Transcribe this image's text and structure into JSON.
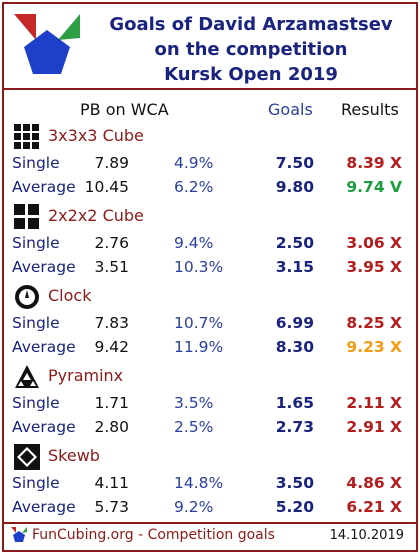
{
  "header": {
    "title_line1": "Goals of David Arzamastsev",
    "title_line2": "on the competition",
    "title_line3": "Kursk Open 2019"
  },
  "columns": {
    "pb": "PB on WCA",
    "goals": "Goals",
    "results": "Results"
  },
  "colors": {
    "frame": "#8b1a1a",
    "navy": "#1a237e",
    "result_miss": "#b71c1c",
    "result_hit": "#1b9e3e",
    "result_near": "#f39c12"
  },
  "events": [
    {
      "name": "3x3x3 Cube",
      "icon": "cube-3x3-icon",
      "rows": [
        {
          "label": "Single",
          "pb": "7.89",
          "pct": "4.9%",
          "goal": "7.50",
          "result": "8.39 X",
          "status": "miss"
        },
        {
          "label": "Average",
          "pb": "10.45",
          "pct": "6.2%",
          "goal": "9.80",
          "result": "9.74 V",
          "status": "hit"
        }
      ]
    },
    {
      "name": "2x2x2 Cube",
      "icon": "cube-2x2-icon",
      "rows": [
        {
          "label": "Single",
          "pb": "2.76",
          "pct": "9.4%",
          "goal": "2.50",
          "result": "3.06 X",
          "status": "miss"
        },
        {
          "label": "Average",
          "pb": "3.51",
          "pct": "10.3%",
          "goal": "3.15",
          "result": "3.95 X",
          "status": "miss"
        }
      ]
    },
    {
      "name": "Clock",
      "icon": "clock-icon",
      "rows": [
        {
          "label": "Single",
          "pb": "7.83",
          "pct": "10.7%",
          "goal": "6.99",
          "result": "8.25 X",
          "status": "miss"
        },
        {
          "label": "Average",
          "pb": "9.42",
          "pct": "11.9%",
          "goal": "8.30",
          "result": "9.23 X",
          "status": "near"
        }
      ]
    },
    {
      "name": "Pyraminx",
      "icon": "pyraminx-icon",
      "rows": [
        {
          "label": "Single",
          "pb": "1.71",
          "pct": "3.5%",
          "goal": "1.65",
          "result": "2.11 X",
          "status": "miss"
        },
        {
          "label": "Average",
          "pb": "2.80",
          "pct": "2.5%",
          "goal": "2.73",
          "result": "2.91 X",
          "status": "miss"
        }
      ]
    },
    {
      "name": "Skewb",
      "icon": "skewb-icon",
      "rows": [
        {
          "label": "Single",
          "pb": "4.11",
          "pct": "14.8%",
          "goal": "3.50",
          "result": "4.86 X",
          "status": "miss"
        },
        {
          "label": "Average",
          "pb": "5.73",
          "pct": "9.2%",
          "goal": "5.20",
          "result": "6.21 X",
          "status": "miss"
        }
      ]
    }
  ],
  "footer": {
    "site": "FunCubing.org - Competition goals",
    "date": "14.10.2019"
  }
}
